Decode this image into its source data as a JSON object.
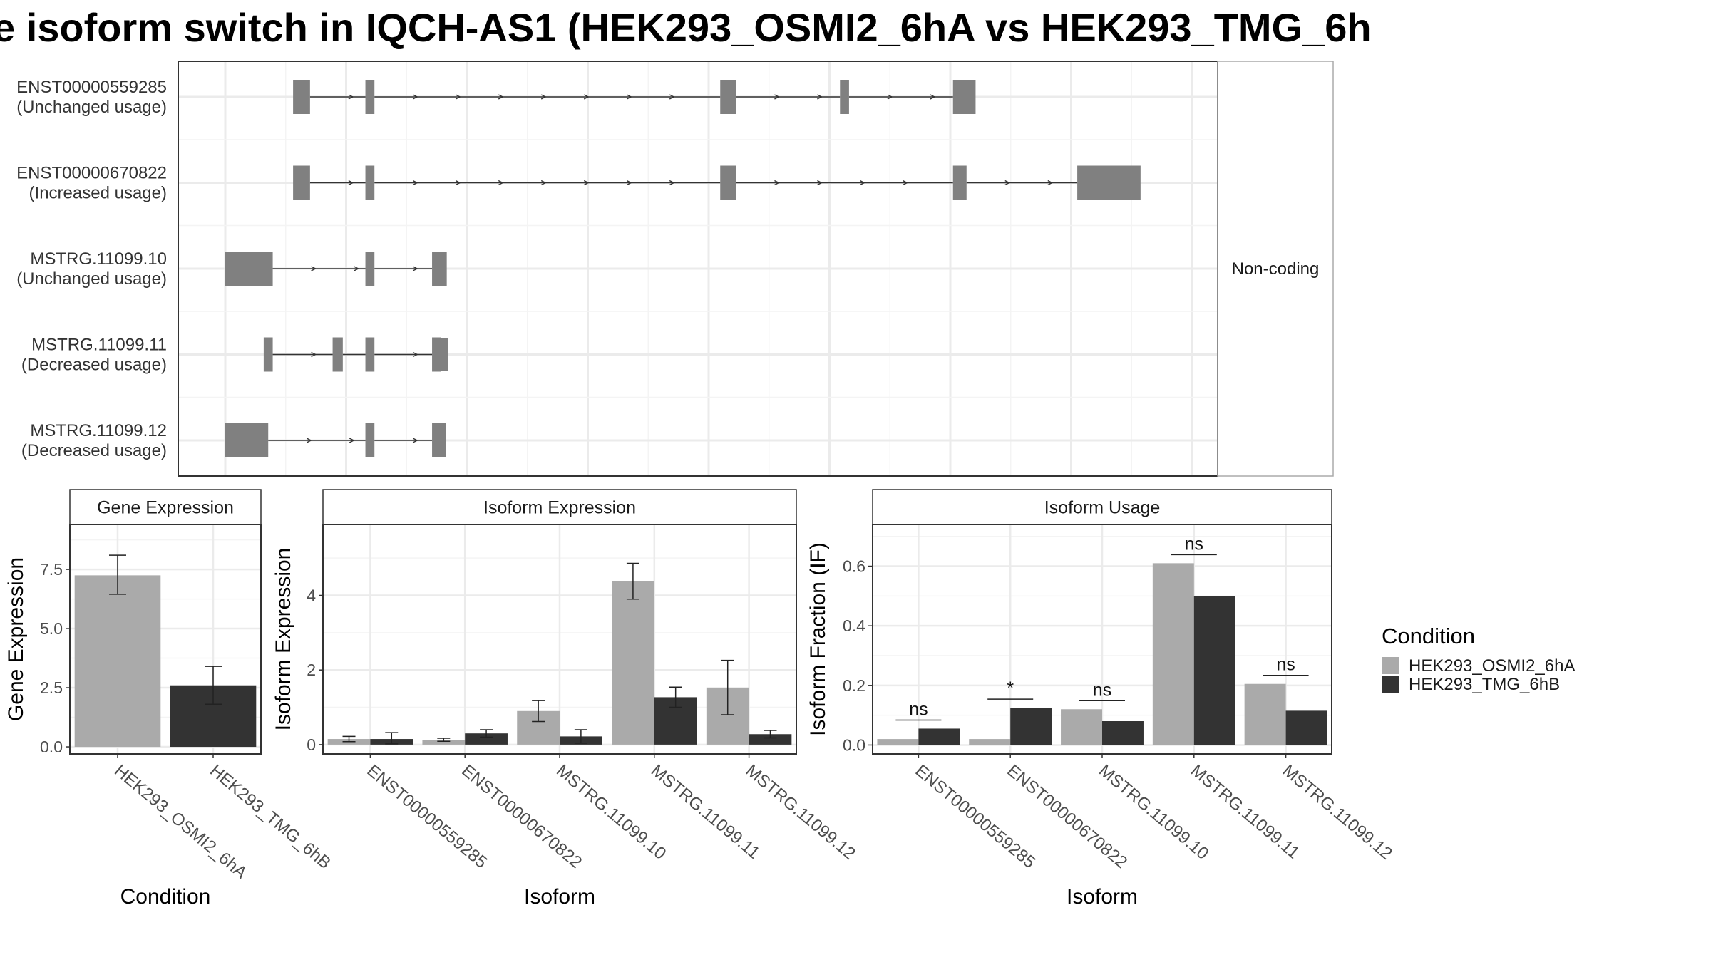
{
  "title": "e isoform switch in IQCH-AS1 (HEK293_OSMI2_6hA vs HEK293_TMG_6h",
  "colors": {
    "osmi": "#aaaaaa",
    "tmg": "#333333",
    "exon": "#808080",
    "grid": "#ebebeb",
    "frame": "#333333"
  },
  "legend": {
    "title": "Condition",
    "items": [
      {
        "label": "HEK293_OSMI2_6hA",
        "color": "#aaaaaa"
      },
      {
        "label": "HEK293_TMG_6hB",
        "color": "#333333"
      }
    ]
  },
  "chart_data": [
    {
      "type": "transcript_structure",
      "facet_label": "Non-coding",
      "transcripts": [
        {
          "id": "ENST00000559285",
          "usage": "(Unchanged usage)",
          "exons": [
            [
              0.6,
              0.75
            ],
            [
              1.24,
              1.32
            ],
            [
              4.38,
              4.52
            ],
            [
              5.44,
              5.52
            ],
            [
              6.44,
              6.64
            ]
          ]
        },
        {
          "id": "ENST00000670822",
          "usage": "(Increased usage)",
          "exons": [
            [
              0.6,
              0.75
            ],
            [
              1.24,
              1.32
            ],
            [
              4.38,
              4.52
            ],
            [
              6.44,
              6.56
            ],
            [
              7.54,
              8.1
            ]
          ]
        },
        {
          "id": "MSTRG.11099.10",
          "usage": "(Unchanged usage)",
          "exons": [
            [
              0.0,
              0.42
            ],
            [
              1.24,
              1.32
            ],
            [
              1.83,
              1.96
            ]
          ]
        },
        {
          "id": "MSTRG.11099.11",
          "usage": "(Decreased usage)",
          "exons": [
            [
              0.34,
              0.42
            ],
            [
              0.95,
              1.04
            ],
            [
              1.24,
              1.32
            ],
            [
              1.83,
              1.91
            ],
            [
              1.91,
              1.97
            ]
          ]
        },
        {
          "id": "MSTRG.11099.12",
          "usage": "(Decreased usage)",
          "exons": [
            [
              0.0,
              0.38
            ],
            [
              1.24,
              1.32
            ],
            [
              1.83,
              1.95
            ]
          ]
        }
      ]
    },
    {
      "type": "bar",
      "strip": "Gene Expression",
      "xlabel": "Condition",
      "ylabel": "Gene Expression",
      "ylim": [
        -0.3,
        9.4
      ],
      "yticks": [
        "0.0",
        "2.5",
        "5.0",
        "7.5"
      ],
      "categories": [
        "HEK293_OSMI2_6hA",
        "HEK293_TMG_6hB"
      ],
      "values": [
        7.25,
        2.6
      ],
      "errors": [
        [
          6.45,
          8.1
        ],
        [
          1.8,
          3.4
        ]
      ]
    },
    {
      "type": "bar",
      "strip": "Isoform Expression",
      "xlabel": "Isoform",
      "ylabel": "Isoform Expression",
      "ylim": [
        -0.25,
        5.9
      ],
      "yticks": [
        "0",
        "2",
        "4"
      ],
      "categories": [
        "ENST00000559285",
        "ENST00000670822",
        "MSTRG.11099.10",
        "MSTRG.11099.11",
        "MSTRG.11099.12"
      ],
      "series": [
        {
          "name": "HEK293_OSMI2_6hA",
          "values": [
            0.15,
            0.13,
            0.9,
            4.38,
            1.53
          ],
          "errors": [
            [
              0.08,
              0.22
            ],
            [
              0.09,
              0.17
            ],
            [
              0.62,
              1.18
            ],
            [
              3.9,
              4.86
            ],
            [
              0.8,
              2.26
            ]
          ]
        },
        {
          "name": "HEK293_TMG_6hB",
          "values": [
            0.15,
            0.3,
            0.22,
            1.27,
            0.28
          ],
          "errors": [
            [
              0.02,
              0.32
            ],
            [
              0.2,
              0.4
            ],
            [
              0.04,
              0.4
            ],
            [
              1.0,
              1.54
            ],
            [
              0.18,
              0.38
            ]
          ]
        }
      ]
    },
    {
      "type": "bar",
      "strip": "Isoform Usage",
      "xlabel": "Isoform",
      "ylabel": "Isoform Fraction (IF)",
      "ylim": [
        -0.03,
        0.74
      ],
      "yticks": [
        "0.0",
        "0.2",
        "0.4",
        "0.6"
      ],
      "categories": [
        "ENST00000559285",
        "ENST00000670822",
        "MSTRG.11099.10",
        "MSTRG.11099.11",
        "MSTRG.11099.12"
      ],
      "series": [
        {
          "name": "HEK293_OSMI2_6hA",
          "values": [
            0.02,
            0.02,
            0.12,
            0.61,
            0.205
          ]
        },
        {
          "name": "HEK293_TMG_6hB",
          "values": [
            0.055,
            0.125,
            0.08,
            0.5,
            0.115
          ]
        }
      ],
      "significance": [
        "ns",
        "*",
        "ns",
        "ns",
        "ns"
      ]
    }
  ]
}
